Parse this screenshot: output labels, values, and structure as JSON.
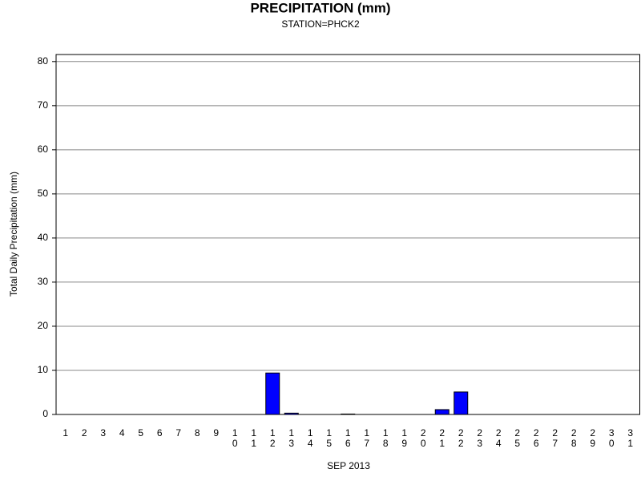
{
  "chart_data": {
    "type": "bar",
    "title": "PRECIPITATION (mm)",
    "subtitle": "STATION=PHCK2",
    "x_label": "SEP 2013",
    "y_label": "Total Daily Precipitation (mm)",
    "categories": [
      "1",
      "2",
      "3",
      "4",
      "5",
      "6",
      "7",
      "8",
      "9",
      "10",
      "11",
      "12",
      "13",
      "14",
      "15",
      "16",
      "17",
      "18",
      "19",
      "20",
      "21",
      "22",
      "23",
      "24",
      "25",
      "26",
      "27",
      "28",
      "29",
      "30",
      "31"
    ],
    "values": [
      0,
      0,
      0,
      0,
      0,
      0,
      0,
      0,
      0,
      0,
      0,
      9.4,
      0.3,
      0,
      0,
      0.1,
      0,
      0,
      0,
      0,
      1.1,
      5.1,
      0,
      0,
      0,
      0,
      0,
      0,
      0,
      0,
      0
    ],
    "color": "#0000ff",
    "ylim": [
      0,
      81.6
    ],
    "yticks": [
      0,
      10,
      20,
      30,
      40,
      50,
      60,
      70,
      80
    ],
    "grid": true
  }
}
